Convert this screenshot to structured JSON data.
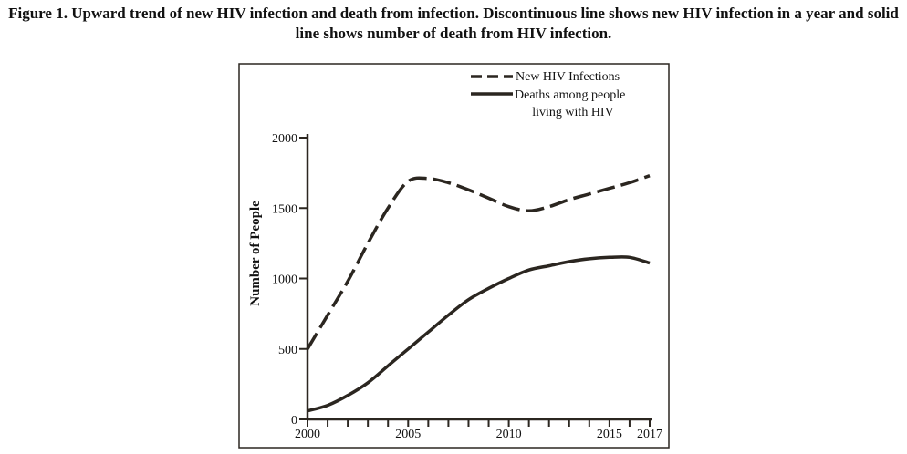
{
  "figure": {
    "label": "Figure 1.",
    "caption": "Upward trend of new HIV infection and death from infection. Discontinuous line shows new HIV infection in a year and solid line shows number of death from HIV infection."
  },
  "chart_data": {
    "type": "line",
    "title": "",
    "xlabel": "",
    "ylabel": "Number of People",
    "xlim": [
      2000,
      2017
    ],
    "ylim": [
      0,
      2000
    ],
    "x_ticks_labeled": [
      "2000",
      "2005",
      "2010",
      "2015",
      "2017"
    ],
    "y_ticks_labeled": [
      "0",
      "500",
      "1000",
      "1500",
      "2000"
    ],
    "grid": false,
    "legend_position": "top-right",
    "colors": {
      "line": "#2b2620"
    },
    "series": [
      {
        "name": "New HIV Infections",
        "style": "dashed",
        "x": [
          2000,
          2001,
          2002,
          2003,
          2004,
          2005,
          2006,
          2007,
          2008,
          2009,
          2010,
          2011,
          2012,
          2013,
          2014,
          2015,
          2016,
          2017
        ],
        "y": [
          500,
          740,
          980,
          1250,
          1500,
          1690,
          1710,
          1680,
          1630,
          1570,
          1510,
          1480,
          1510,
          1560,
          1600,
          1640,
          1680,
          1730
        ]
      },
      {
        "name": "Deaths among people living with HIV",
        "legend_lines": [
          "Deaths among people",
          "living with HIV"
        ],
        "style": "solid",
        "x": [
          2000,
          2001,
          2002,
          2003,
          2004,
          2005,
          2006,
          2007,
          2008,
          2009,
          2010,
          2011,
          2012,
          2013,
          2014,
          2015,
          2016,
          2017
        ],
        "y": [
          60,
          100,
          170,
          260,
          380,
          500,
          620,
          740,
          850,
          930,
          1000,
          1060,
          1090,
          1120,
          1140,
          1150,
          1150,
          1110
        ]
      }
    ]
  }
}
